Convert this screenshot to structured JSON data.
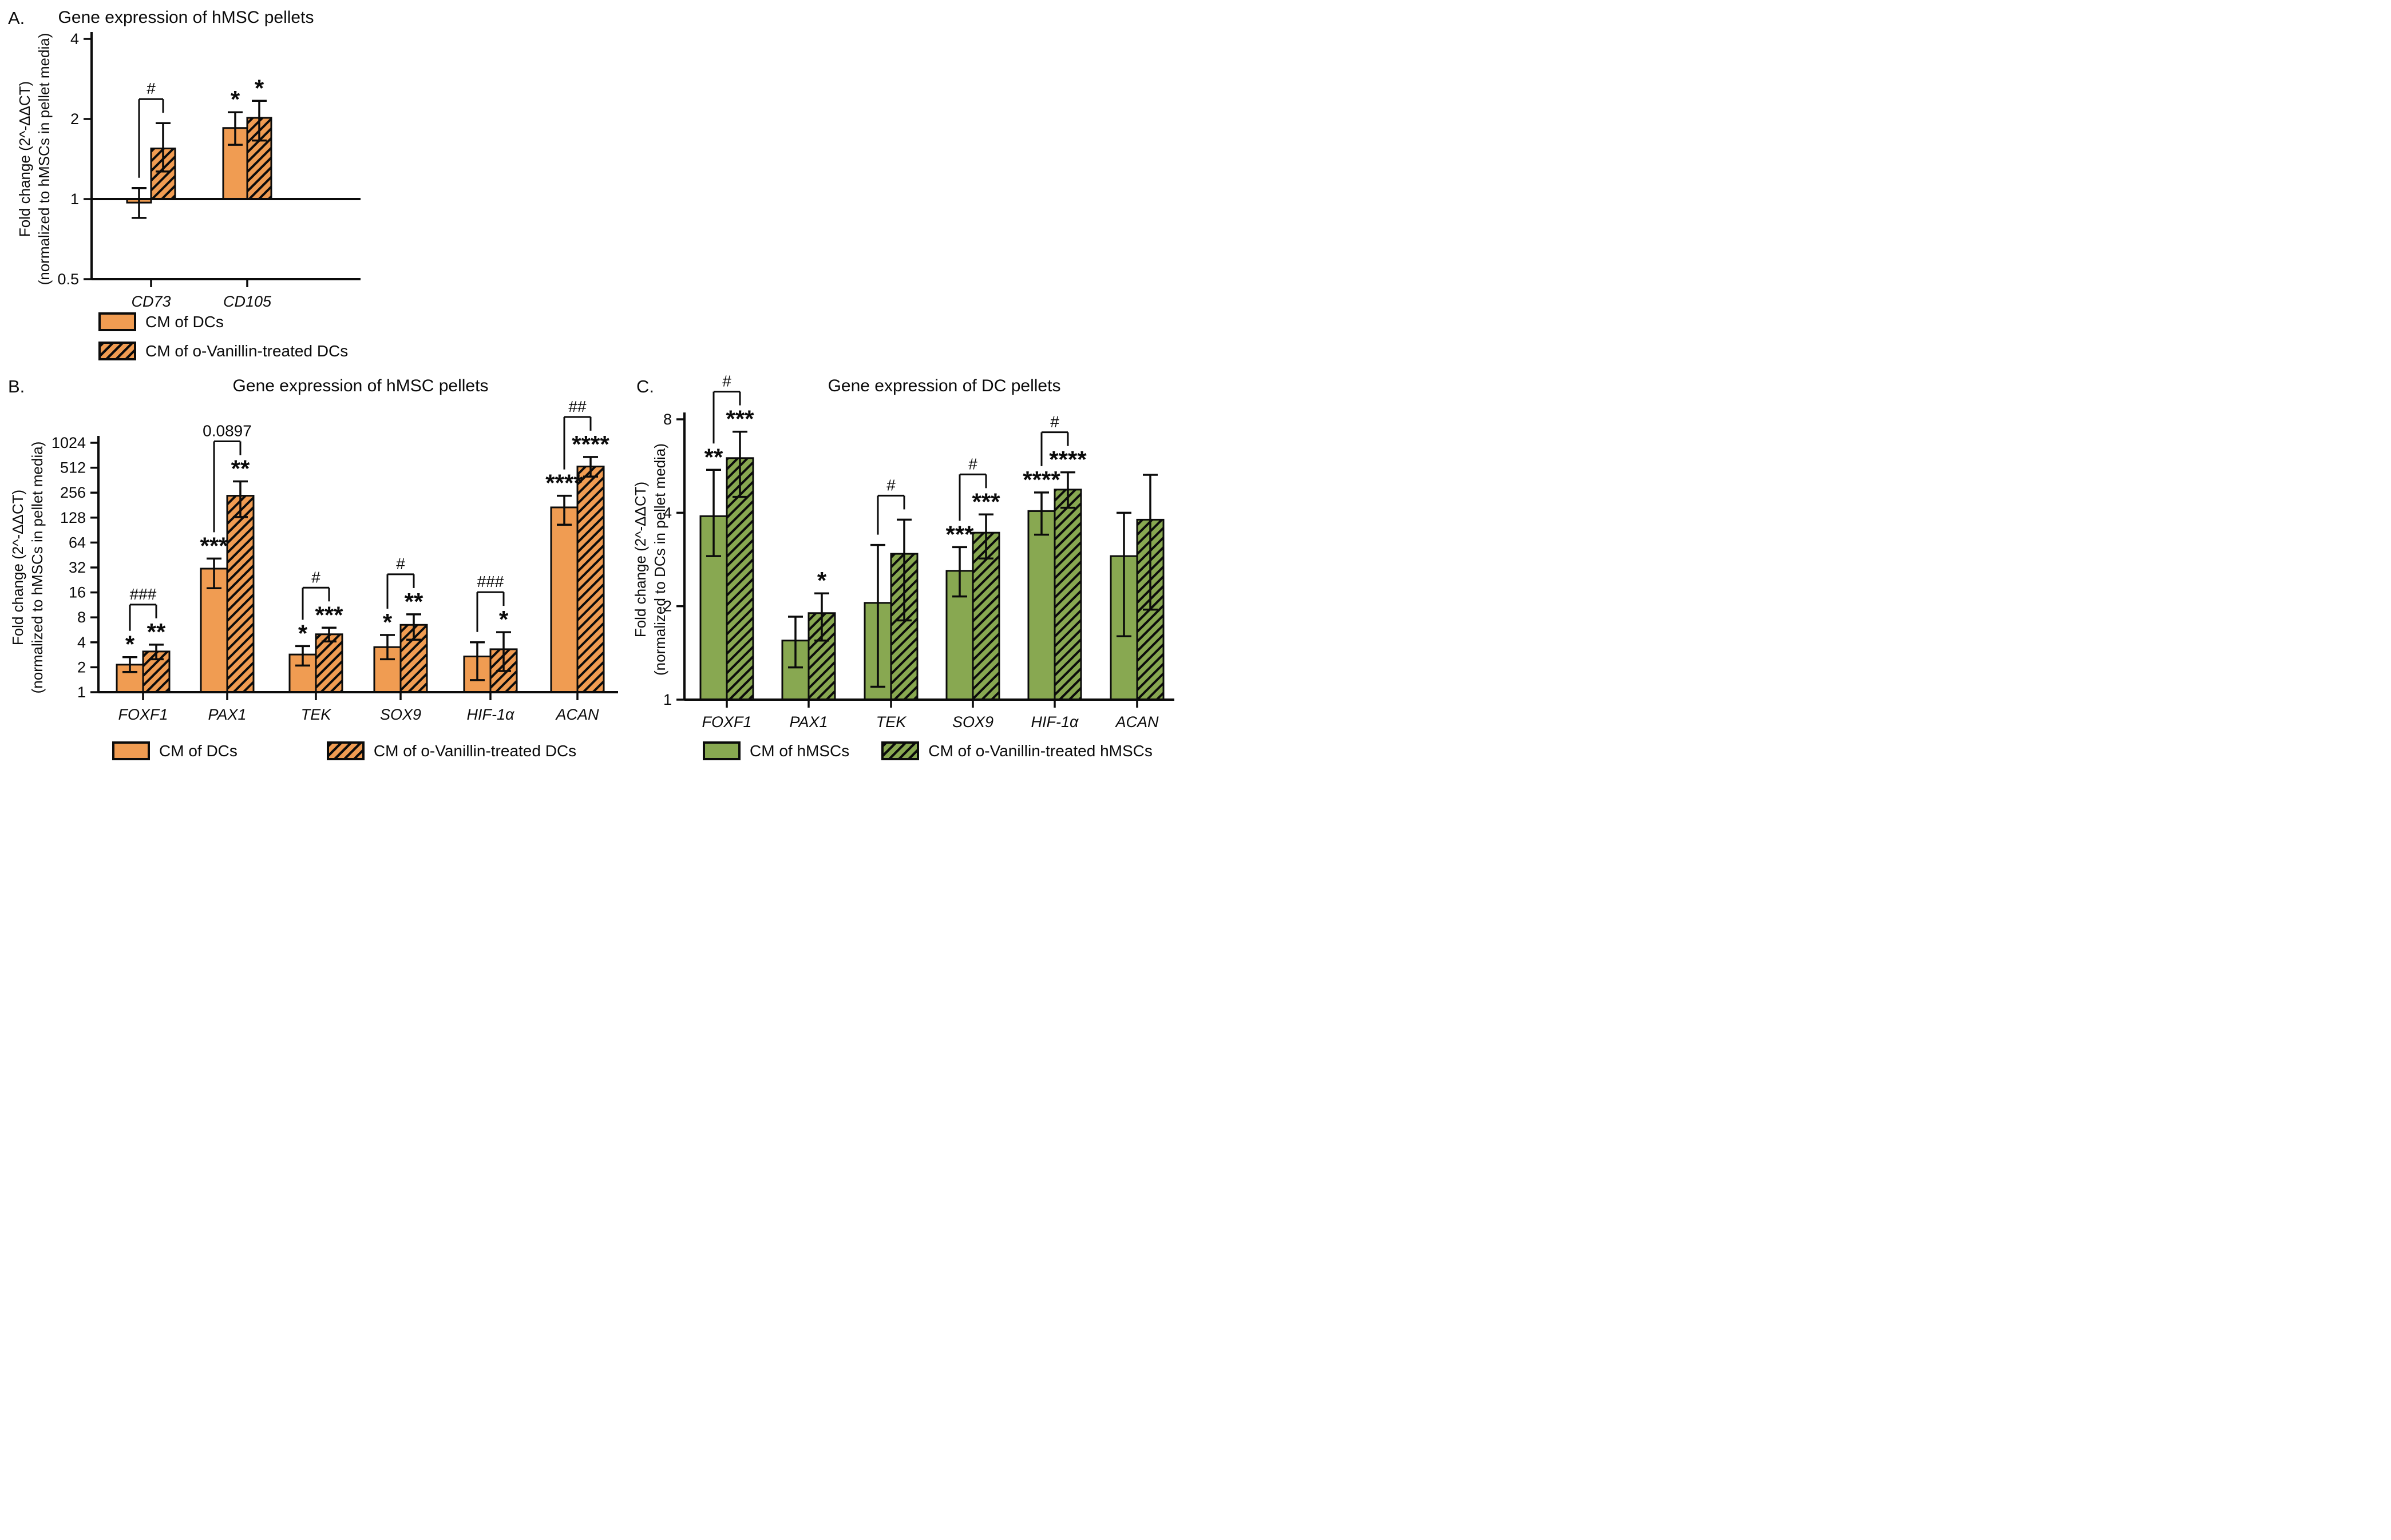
{
  "colors": {
    "orange": "#F09C52",
    "green": "#88A851",
    "outline": "#0B0B0B",
    "background": "#FFFFFF"
  },
  "chart_data": [
    {
      "id": "A",
      "panel_label": "A.",
      "title": "Gene expression of hMSC pellets",
      "type": "bar",
      "scale": "log2",
      "ylabel_line1": "Fold change (2^-ΔΔCT)",
      "ylabel_line2": "(normalized to hMSCs in pellet media)",
      "ylim": [
        0.5,
        4
      ],
      "yticks": [
        4,
        2,
        1,
        0.5
      ],
      "baseline": 1,
      "bar_color": "#F09C52",
      "categories": [
        "CD73",
        "CD105"
      ],
      "series": [
        {
          "name": "CM of DCs",
          "style": "solid",
          "values": [
            0.97,
            1.85
          ],
          "err_low": [
            0.85,
            1.6
          ],
          "err_high": [
            1.1,
            2.12
          ],
          "sig": [
            "",
            "*"
          ]
        },
        {
          "name": "CM of o-Vanillin-treated DCs",
          "style": "hatched",
          "values": [
            1.55,
            2.02
          ],
          "err_low": [
            1.27,
            1.66
          ],
          "err_high": [
            1.93,
            2.34
          ],
          "sig": [
            "",
            "*"
          ]
        }
      ],
      "comparisons": [
        {
          "category": "CD73",
          "label": "#"
        }
      ]
    },
    {
      "id": "B",
      "panel_label": "B.",
      "title": "Gene expression of hMSC pellets",
      "type": "bar",
      "scale": "log2",
      "ylabel_line1": "Fold change (2^-ΔΔCT)",
      "ylabel_line2": "(normalized to hMSCs in pellet media)",
      "ylim": [
        1,
        1024
      ],
      "yticks": [
        1024,
        512,
        256,
        128,
        64,
        32,
        16,
        8,
        4,
        2,
        1
      ],
      "baseline": 1,
      "bar_color": "#F09C52",
      "categories": [
        "FOXF1",
        "PAX1",
        "TEK",
        "SOX9",
        "HIF-1α",
        "ACAN"
      ],
      "series": [
        {
          "name": "CM of DCs",
          "style": "solid",
          "values": [
            2.15,
            31,
            2.85,
            3.5,
            2.7,
            170
          ],
          "err_low": [
            1.75,
            18,
            2.1,
            2.5,
            1.4,
            105
          ],
          "err_high": [
            2.65,
            41,
            3.6,
            4.9,
            4.0,
            235
          ],
          "sig": [
            "*",
            "***",
            "*",
            "*",
            "",
            "****"
          ]
        },
        {
          "name": "CM of o-Vanillin-treated DCs",
          "style": "hatched",
          "values": [
            3.1,
            235,
            5.0,
            6.5,
            3.3,
            530
          ],
          "err_low": [
            2.5,
            130,
            4.1,
            4.3,
            1.8,
            400
          ],
          "err_high": [
            3.75,
            350,
            6.0,
            8.7,
            5.3,
            690
          ],
          "sig": [
            "**",
            "**",
            "***",
            "**",
            "*",
            "****"
          ]
        }
      ],
      "comparisons": [
        {
          "category": "FOXF1",
          "label": "###"
        },
        {
          "category": "PAX1",
          "label": "0.0897"
        },
        {
          "category": "TEK",
          "label": "#"
        },
        {
          "category": "SOX9",
          "label": "#"
        },
        {
          "category": "HIF-1α",
          "label": "###"
        },
        {
          "category": "ACAN",
          "label": "##"
        }
      ]
    },
    {
      "id": "C",
      "panel_label": "C.",
      "title": "Gene expression of DC pellets",
      "type": "bar",
      "scale": "log2",
      "ylabel_line1": "Fold change (2^-ΔΔCT)",
      "ylabel_line2": "(normalized to DCs in pellet media)",
      "ylim": [
        1,
        8
      ],
      "yticks": [
        8,
        4,
        2,
        1
      ],
      "baseline": 1,
      "bar_color": "#88A851",
      "categories": [
        "FOXF1",
        "PAX1",
        "TEK",
        "SOX9",
        "HIF-1α",
        "ACAN"
      ],
      "series": [
        {
          "name": "CM of hMSCs",
          "style": "solid",
          "values": [
            3.9,
            1.55,
            2.05,
            2.6,
            4.05,
            2.9
          ],
          "err_low": [
            2.9,
            1.27,
            1.1,
            2.15,
            3.4,
            1.6
          ],
          "err_high": [
            5.5,
            1.85,
            3.15,
            3.1,
            4.65,
            4.0
          ],
          "sig": [
            "**",
            "",
            "",
            "***",
            "****",
            ""
          ]
        },
        {
          "name": "CM of o-Vanillin-treated hMSCs",
          "style": "hatched",
          "values": [
            6.0,
            1.9,
            2.95,
            3.45,
            4.75,
            3.8
          ],
          "err_low": [
            4.5,
            1.55,
            1.8,
            2.85,
            4.15,
            1.95
          ],
          "err_high": [
            7.3,
            2.2,
            3.8,
            3.95,
            5.4,
            5.3
          ],
          "sig": [
            "***",
            "*",
            "",
            "***",
            "****",
            ""
          ]
        }
      ],
      "comparisons": [
        {
          "category": "FOXF1",
          "label": "#"
        },
        {
          "category": "TEK",
          "label": "#"
        },
        {
          "category": "SOX9",
          "label": "#"
        },
        {
          "category": "HIF-1α",
          "label": "#"
        }
      ]
    }
  ]
}
